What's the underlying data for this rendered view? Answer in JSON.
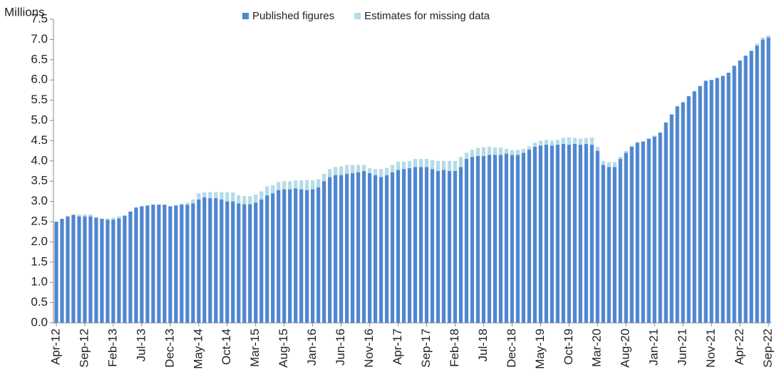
{
  "chart_data": {
    "type": "stacked_bar",
    "y_label": "Millions",
    "legend": "top",
    "categories": [
      "Apr-12",
      null,
      null,
      null,
      null,
      "Sep-12",
      null,
      null,
      null,
      null,
      "Feb-13",
      null,
      null,
      null,
      null,
      "Jul-13",
      null,
      null,
      null,
      null,
      "Dec-13",
      null,
      null,
      null,
      null,
      "May-14",
      null,
      null,
      null,
      null,
      "Oct-14",
      null,
      null,
      null,
      null,
      "Mar-15",
      null,
      null,
      null,
      null,
      "Aug-15",
      null,
      null,
      null,
      null,
      "Jan-16",
      null,
      null,
      null,
      null,
      "Jun-16",
      null,
      null,
      null,
      null,
      "Nov-16",
      null,
      null,
      null,
      null,
      "Apr-17",
      null,
      null,
      null,
      null,
      "Sep-17",
      null,
      null,
      null,
      null,
      "Feb-18",
      null,
      null,
      null,
      null,
      "Jul-18",
      null,
      null,
      null,
      null,
      "Dec-18",
      null,
      null,
      null,
      null,
      "May-19",
      null,
      null,
      null,
      null,
      "Oct-19",
      null,
      null,
      null,
      null,
      "Mar-20",
      null,
      null,
      null,
      null,
      "Aug-20",
      null,
      null,
      null,
      null,
      "Jan-21",
      null,
      null,
      null,
      null,
      "Jun-21",
      null,
      null,
      null,
      null,
      "Nov-21",
      null,
      null,
      null,
      null,
      "Apr-22",
      null,
      null,
      null,
      null,
      "Sep-22"
    ],
    "series": [
      {
        "name": "Published figures",
        "color": "#4f86d0",
        "values": [
          2.5,
          2.57,
          2.63,
          2.67,
          2.63,
          2.63,
          2.63,
          2.6,
          2.57,
          2.55,
          2.55,
          2.58,
          2.65,
          2.75,
          2.85,
          2.88,
          2.9,
          2.92,
          2.92,
          2.92,
          2.88,
          2.9,
          2.92,
          2.92,
          2.95,
          3.05,
          3.1,
          3.08,
          3.08,
          3.05,
          3.0,
          3.0,
          2.95,
          2.93,
          2.93,
          2.97,
          3.05,
          3.15,
          3.2,
          3.28,
          3.3,
          3.3,
          3.32,
          3.3,
          3.28,
          3.3,
          3.35,
          3.5,
          3.6,
          3.65,
          3.65,
          3.68,
          3.7,
          3.72,
          3.75,
          3.7,
          3.65,
          3.6,
          3.65,
          3.72,
          3.78,
          3.8,
          3.82,
          3.85,
          3.85,
          3.85,
          3.8,
          3.75,
          3.78,
          3.75,
          3.75,
          3.85,
          4.05,
          4.1,
          4.12,
          4.12,
          4.15,
          4.15,
          4.15,
          4.18,
          4.15,
          4.15,
          4.2,
          4.28,
          4.35,
          4.38,
          4.4,
          4.38,
          4.4,
          4.42,
          4.4,
          4.42,
          4.4,
          4.42,
          4.4,
          4.25,
          3.9,
          3.85,
          3.85,
          4.05,
          4.2,
          4.35,
          4.45,
          4.48,
          4.55,
          4.6,
          4.7,
          4.95,
          5.15,
          5.35,
          5.45,
          5.6,
          5.72,
          5.85,
          5.98,
          6.0,
          6.05,
          6.1,
          6.18,
          6.35,
          6.48,
          6.6,
          6.72,
          6.85,
          7.0,
          7.05
        ]
      },
      {
        "name": "Estimates for missing data",
        "color": "#b3dce8",
        "values": [
          0,
          0,
          0,
          0,
          0.05,
          0.05,
          0.05,
          0,
          0,
          0.03,
          0.05,
          0.05,
          0,
          0,
          0,
          0,
          0,
          0,
          0,
          0,
          0,
          0,
          0.03,
          0.05,
          0.1,
          0.15,
          0.12,
          0.15,
          0.15,
          0.18,
          0.22,
          0.22,
          0.2,
          0.2,
          0.2,
          0.2,
          0.2,
          0.22,
          0.2,
          0.2,
          0.2,
          0.2,
          0.2,
          0.22,
          0.25,
          0.22,
          0.2,
          0.18,
          0.2,
          0.2,
          0.22,
          0.22,
          0.2,
          0.18,
          0.15,
          0.12,
          0.15,
          0.2,
          0.18,
          0.18,
          0.2,
          0.18,
          0.18,
          0.2,
          0.2,
          0.2,
          0.22,
          0.25,
          0.22,
          0.25,
          0.25,
          0.25,
          0.15,
          0.18,
          0.2,
          0.22,
          0.2,
          0.18,
          0.18,
          0.12,
          0.12,
          0.12,
          0.1,
          0.08,
          0.1,
          0.12,
          0.12,
          0.12,
          0.12,
          0.15,
          0.18,
          0.15,
          0.15,
          0.15,
          0.18,
          0.1,
          0.1,
          0.12,
          0.12,
          0.05,
          0.05,
          0.03,
          0.02,
          0,
          0,
          0.03,
          0,
          0,
          0,
          0,
          0,
          0,
          0,
          0,
          0,
          0,
          0,
          0,
          0,
          0,
          0,
          0,
          0,
          0.05,
          0.05,
          0.05
        ]
      }
    ],
    "ylim": [
      0,
      7.5
    ],
    "yticks": [
      {
        "value": 0,
        "label": "0.0"
      },
      0.5,
      {
        "value": 1,
        "label": "1.0"
      },
      1.5,
      {
        "value": 2,
        "label": "2.0"
      },
      2.5,
      {
        "value": 3,
        "label": "3.0"
      },
      3.5,
      {
        "value": 4,
        "label": "4.0"
      },
      4.5,
      {
        "value": 5,
        "label": "5.0"
      },
      5.5,
      {
        "value": 6,
        "label": "6.0"
      },
      6.5,
      {
        "value": 7,
        "label": "7.0"
      },
      7.5
    ],
    "grid": false
  }
}
